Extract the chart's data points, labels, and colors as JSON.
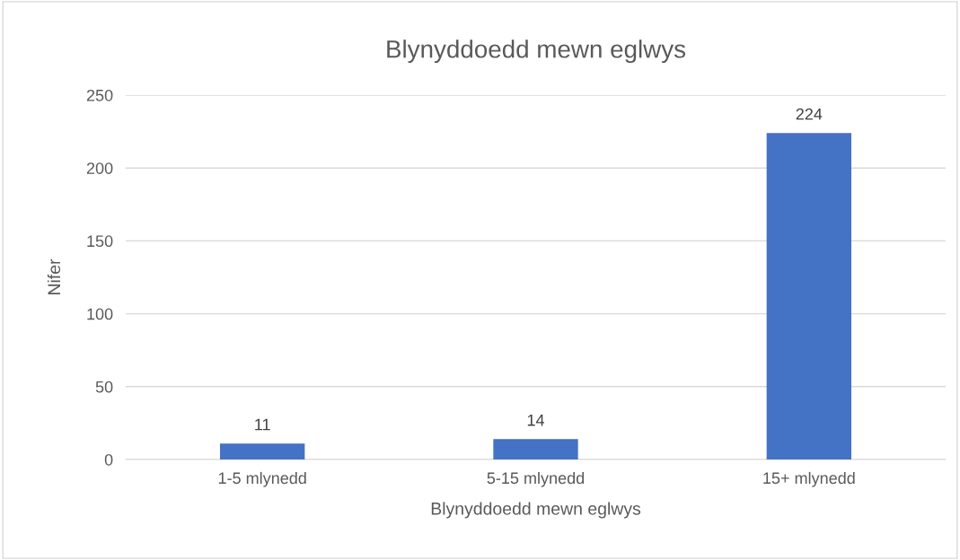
{
  "chart_data": {
    "type": "bar",
    "title": "Blynyddoedd mewn eglwys",
    "xlabel": "Blynyddoedd mewn eglwys",
    "ylabel": "Nifer",
    "categories": [
      "1-5 mlynedd",
      "5-15 mlynedd",
      "15+ mlynedd"
    ],
    "values": [
      11,
      14,
      224
    ],
    "color": "#4472c4",
    "ylim": [
      0,
      250
    ],
    "yticks": [
      0,
      50,
      100,
      150,
      200,
      250
    ],
    "grid": "y",
    "data_labels": true
  }
}
